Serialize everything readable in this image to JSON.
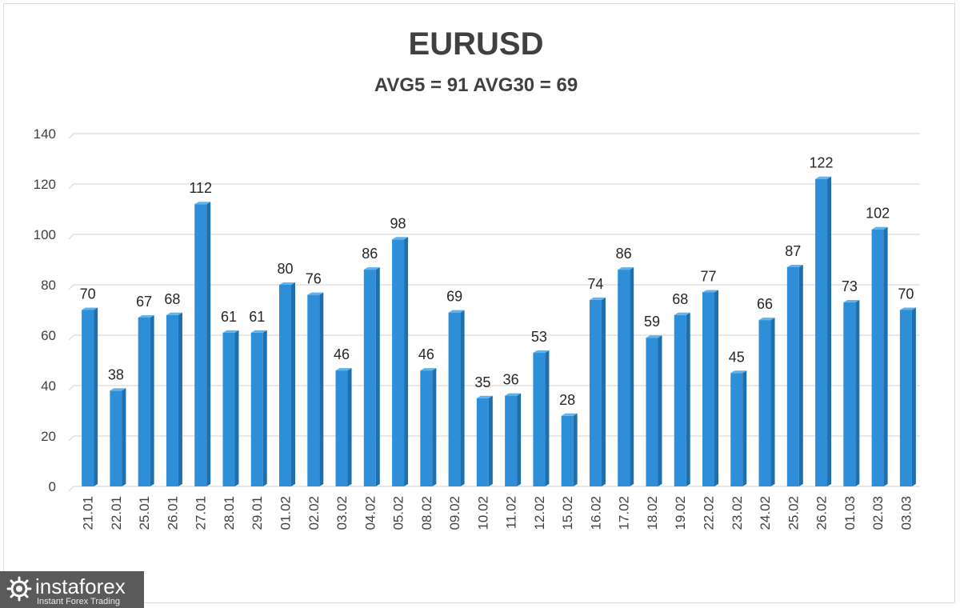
{
  "chart_data": {
    "type": "bar",
    "title": "EURUSD",
    "subtitle": "AVG5 = 91 AVG30 = 69",
    "categories": [
      "21.01",
      "22.01",
      "25.01",
      "26.01",
      "27.01",
      "28.01",
      "29.01",
      "01.02",
      "02.02",
      "03.02",
      "04.02",
      "05.02",
      "08.02",
      "09.02",
      "10.02",
      "11.02",
      "12.02",
      "15.02",
      "16.02",
      "17.02",
      "18.02",
      "19.02",
      "22.02",
      "23.02",
      "24.02",
      "25.02",
      "26.02",
      "01.03",
      "02.03",
      "03.03"
    ],
    "values": [
      70,
      38,
      67,
      68,
      112,
      61,
      61,
      80,
      76,
      46,
      86,
      98,
      46,
      69,
      35,
      36,
      53,
      28,
      74,
      86,
      59,
      68,
      77,
      45,
      66,
      87,
      122,
      73,
      102,
      70
    ],
    "ylim": [
      0,
      140
    ],
    "yticks": [
      0,
      20,
      40,
      60,
      80,
      100,
      120,
      140
    ],
    "grid": true,
    "legend": "none",
    "bar_color": "#2e8fd8",
    "bar_side_color": "#1f6fae",
    "bar_top_color": "#5fb3ec",
    "grid_color": "#d9d9d9"
  },
  "watermark": {
    "name": "instaforex",
    "tagline": "Instant Forex Trading"
  }
}
